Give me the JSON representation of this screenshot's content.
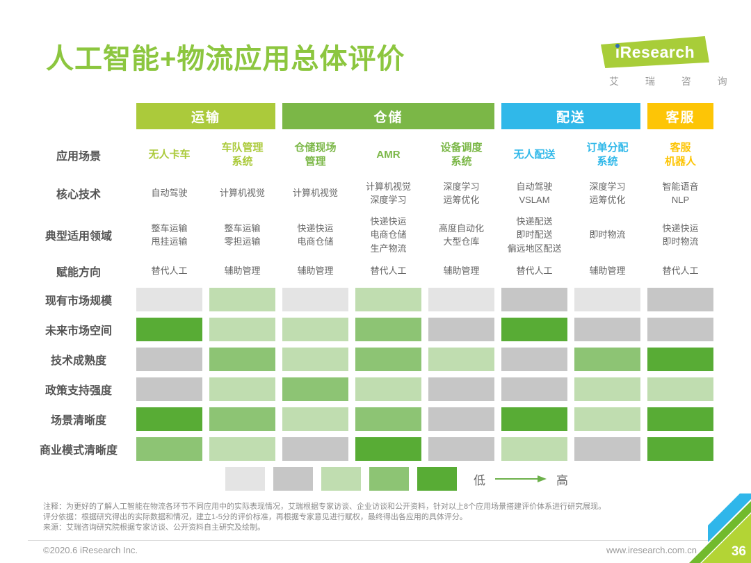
{
  "header": {
    "title": "人工智能+物流应用总体评价",
    "logo_i": "i",
    "logo_rest": "Research",
    "logo_subtext": "艾 瑞 咨 询"
  },
  "table": {
    "groups": [
      {
        "id": "transport",
        "label": "运输",
        "span": 2,
        "color": "#abca3b"
      },
      {
        "id": "warehousing",
        "label": "仓储",
        "span": 3,
        "color": "#7bb747"
      },
      {
        "id": "delivery",
        "label": "配送",
        "span": 2,
        "color": "#30b8e9"
      },
      {
        "id": "customer-service",
        "label": "客服",
        "span": 1,
        "color": "#fdc506"
      }
    ],
    "column_group_index": [
      0,
      0,
      1,
      1,
      1,
      2,
      2,
      3
    ],
    "row_labels": {
      "scenario": "应用场景",
      "tech": "核心技术",
      "domain": "典型适用领域",
      "direction": "赋能方向"
    },
    "columns": [
      {
        "name": [
          "无人卡车"
        ],
        "tech": [
          "自动驾驶"
        ],
        "domain": [
          "整车运输",
          "甩挂运输"
        ],
        "direction": [
          "替代人工"
        ]
      },
      {
        "name": [
          "车队管理",
          "系统"
        ],
        "tech": [
          "计算机视觉"
        ],
        "domain": [
          "整车运输",
          "零担运输"
        ],
        "direction": [
          "辅助管理"
        ]
      },
      {
        "name": [
          "仓储现场",
          "管理"
        ],
        "tech": [
          "计算机视觉"
        ],
        "domain": [
          "快递快运",
          "电商仓储"
        ],
        "direction": [
          "辅助管理"
        ]
      },
      {
        "name": [
          "AMR"
        ],
        "tech": [
          "计算机视觉",
          "深度学习"
        ],
        "domain": [
          "快递快运",
          "电商仓储",
          "生产物流"
        ],
        "direction": [
          "替代人工"
        ]
      },
      {
        "name": [
          "设备调度",
          "系统"
        ],
        "tech": [
          "深度学习",
          "运筹优化"
        ],
        "domain": [
          "高度自动化",
          "大型仓库"
        ],
        "direction": [
          "辅助管理"
        ]
      },
      {
        "name": [
          "无人配送"
        ],
        "tech": [
          "自动驾驶",
          "VSLAM"
        ],
        "domain": [
          "快递配送",
          "即时配送",
          "偏远地区配送"
        ],
        "direction": [
          "替代人工"
        ]
      },
      {
        "name": [
          "订单分配",
          "系统"
        ],
        "tech": [
          "深度学习",
          "运筹优化"
        ],
        "domain": [
          "即时物流"
        ],
        "direction": [
          "辅助管理"
        ]
      },
      {
        "name": [
          "客服",
          "机器人"
        ],
        "tech": [
          "智能语音",
          "NLP"
        ],
        "domain": [
          "快递快运",
          "即时物流"
        ],
        "direction": [
          "替代人工"
        ]
      }
    ],
    "rating_rows": [
      {
        "label": "现有市场规模",
        "levels": [
          1,
          3,
          1,
          3,
          1,
          2,
          1,
          2
        ]
      },
      {
        "label": "未来市场空间",
        "levels": [
          5,
          3,
          3,
          4,
          2,
          5,
          2,
          2
        ]
      },
      {
        "label": "技术成熟度",
        "levels": [
          2,
          4,
          3,
          4,
          3,
          2,
          4,
          5
        ]
      },
      {
        "label": "政策支持强度",
        "levels": [
          2,
          3,
          4,
          3,
          2,
          2,
          3,
          3
        ]
      },
      {
        "label": "场景清晰度",
        "levels": [
          5,
          4,
          3,
          4,
          2,
          5,
          3,
          5
        ]
      },
      {
        "label": "商业模式清晰度",
        "levels": [
          4,
          3,
          2,
          5,
          2,
          3,
          2,
          5
        ]
      }
    ],
    "scale_colors": [
      "#e4e4e4",
      "#c6c6c6",
      "#c0ddb0",
      "#8dc474",
      "#58ac35"
    ]
  },
  "legend": {
    "low": "低",
    "high": "高"
  },
  "notes": [
    "注释：为更好的了解人工智能在物流各环节不同应用中的实际表现情况，艾瑞根据专家访谈、企业访谈和公开资料，针对以上8个应用场景搭建评价体系进行研究展现。",
    "评分依据：根据研究得出的实际数据和情况，建立1-5分的评价标准，再根据专家意见进行赋权，最终得出各应用的具体评分。",
    "来源：艾瑞咨询研究院根据专家访谈、公开资料自主研究及绘制。"
  ],
  "footer": {
    "left": "©2020.6 iResearch Inc.",
    "right": "www.iresearch.com.cn",
    "page_number": "36"
  },
  "chart_data": {
    "type": "heatmap",
    "title": "人工智能+物流应用总体评价",
    "column_groups": [
      {
        "label": "运输",
        "columns": [
          "无人卡车",
          "车队管理系统"
        ]
      },
      {
        "label": "仓储",
        "columns": [
          "仓储现场管理",
          "AMR",
          "设备调度系统"
        ]
      },
      {
        "label": "配送",
        "columns": [
          "无人配送",
          "订单分配系统"
        ]
      },
      {
        "label": "客服",
        "columns": [
          "客服机器人"
        ]
      }
    ],
    "columns": [
      "无人卡车",
      "车队管理系统",
      "仓储现场管理",
      "AMR",
      "设备调度系统",
      "无人配送",
      "订单分配系统",
      "客服机器人"
    ],
    "rows": [
      "现有市场规模",
      "未来市场空间",
      "技术成熟度",
      "政策支持强度",
      "场景清晰度",
      "商业模式清晰度"
    ],
    "values": [
      [
        1,
        3,
        1,
        3,
        1,
        2,
        1,
        2
      ],
      [
        5,
        3,
        3,
        4,
        2,
        5,
        2,
        2
      ],
      [
        2,
        4,
        3,
        4,
        3,
        2,
        4,
        5
      ],
      [
        2,
        3,
        4,
        3,
        2,
        2,
        3,
        3
      ],
      [
        5,
        4,
        3,
        4,
        2,
        5,
        3,
        5
      ],
      [
        4,
        3,
        2,
        5,
        2,
        3,
        2,
        5
      ]
    ],
    "scale": {
      "min": 1,
      "max": 5,
      "low_label": "低",
      "high_label": "高",
      "legend_position": "bottom"
    }
  }
}
